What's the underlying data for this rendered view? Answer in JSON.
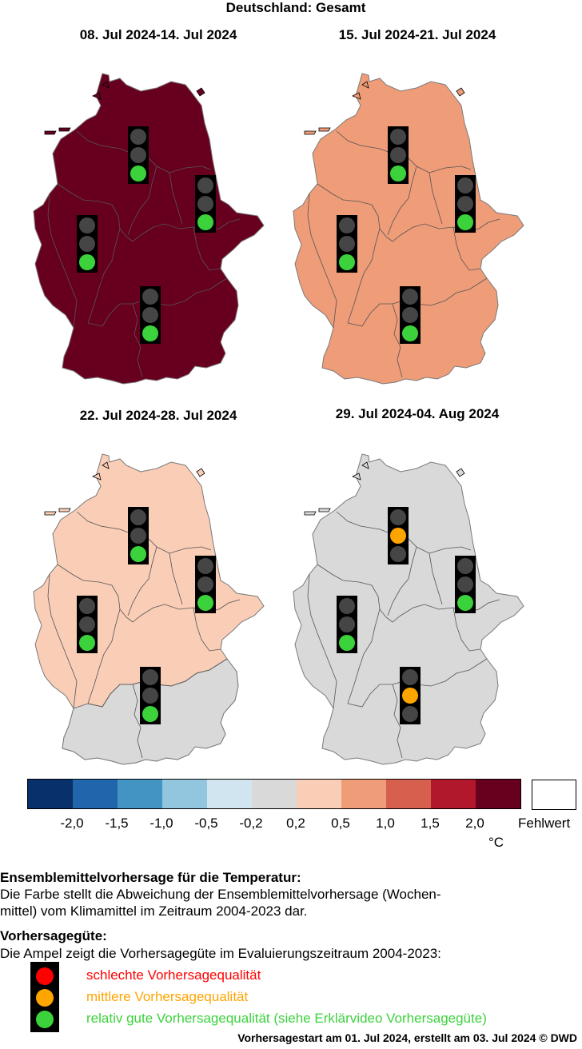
{
  "title": "Deutschland: Gesamt",
  "colors": {
    "dark_red": "#67001f",
    "orange_salmon": "#ef9c78",
    "light_salmon": "#f9cdb6",
    "grey": "#d9d9d9",
    "ampel_red": "#ff0000",
    "ampel_orange": "#ffa500",
    "ampel_green": "#3cd23c",
    "ampel_off": "#454545"
  },
  "panels": [
    {
      "title": "08. Jul 2024-14. Jul 2024",
      "fill": "dark_red",
      "fill_hex": "#67001f",
      "ampel": [
        "green",
        "green",
        "green",
        "green"
      ]
    },
    {
      "title": "15. Jul 2024-21. Jul 2024",
      "fill": "orange_salmon",
      "fill_hex": "#ef9c78",
      "ampel": [
        "green",
        "green",
        "green",
        "green"
      ]
    },
    {
      "title": "22. Jul 2024-28. Jul 2024",
      "fill": "light_salmon",
      "fill_hex": "#f9cdb6",
      "south_fill_hex": "#d9d9d9",
      "ampel": [
        "green",
        "green",
        "green",
        "green"
      ]
    },
    {
      "title": "29. Jul 2024-04. Aug 2024",
      "fill": "grey",
      "fill_hex": "#d9d9d9",
      "ampel": [
        "orange",
        "green",
        "green",
        "orange"
      ]
    }
  ],
  "colorbar": {
    "colors": [
      "#08306b",
      "#2166ac",
      "#4393c3",
      "#92c5de",
      "#d1e5f0",
      "#d9d9d9",
      "#f9cdb6",
      "#ef9c78",
      "#d6604d",
      "#b2182b",
      "#67001f"
    ],
    "ticks": [
      "-2,0",
      "-1,5",
      "-1,0",
      "-0,5",
      "-0,2",
      "0,2",
      "0,5",
      "1,0",
      "1,5",
      "2,0"
    ],
    "unit": "°C",
    "missing_label": "Fehlwert"
  },
  "description": {
    "heading1": "Ensemblemittelvorhersage für die Temperatur:",
    "line1": "Die Farbe stellt die Abweichung der Ensemblemittelvorhersage (Wochen-",
    "line2": "mittel) vom Klimamittel im Zeitraum 2004-2023 dar.",
    "heading2": "Vorhersagegüte:",
    "line3": "Die Ampel zeigt die Vorhersagegüte im Evaluierungszeitraum 2004-2023:"
  },
  "legend": {
    "bad": "schlechte Vorhersagequalität",
    "medium": "mittlere Vorhersagequalität",
    "good": "relativ gute Vorhersagequalität (siehe Erklärvideo Vorhersagegüte)"
  },
  "footer": "Vorhersagestart am 01. Jul 2024, erstellt am 03. Jul 2024 © DWD"
}
